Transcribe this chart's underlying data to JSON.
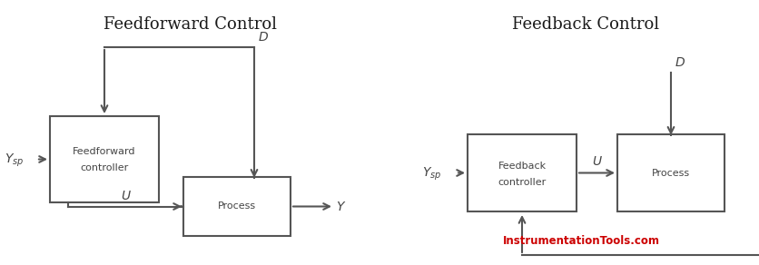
{
  "title_left": "Feedforward Control",
  "title_right": "Feedback Control",
  "title_color": "#1a1a1a",
  "title_fontsize": 13,
  "watermark": "InstrumentationTools.com",
  "watermark_color": "#cc0000",
  "bg_color": "#ffffff",
  "line_color": "#555555",
  "box_color": "#555555",
  "text_color": "#444444",
  "lw": 1.5
}
